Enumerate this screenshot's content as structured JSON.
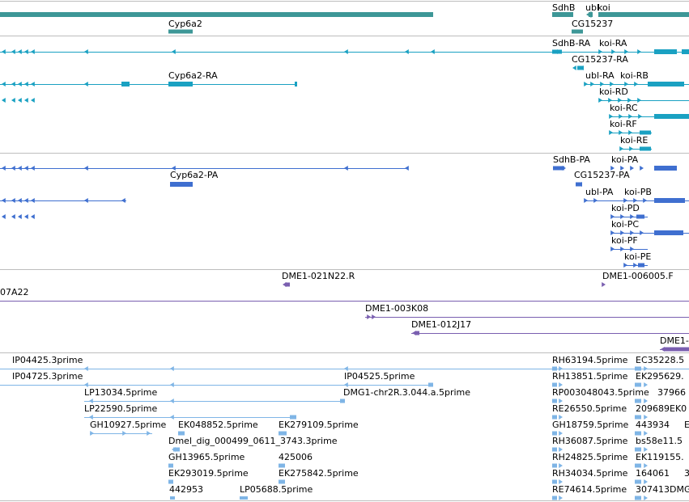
{
  "tracks": [
    {
      "name": "gene",
      "color": "#3d9797",
      "labels": [
        "Cyp6a2",
        "SdhB",
        "ubl",
        "koi",
        "CG15237"
      ]
    },
    {
      "name": "mrna",
      "color": "#1aa1c2",
      "labels": [
        "Cyp6a2-RA",
        "SdhB-RA",
        "koi-RA",
        "CG15237-RA",
        "ubl-RA",
        "koi-RB",
        "koi-RD",
        "koi-RC",
        "koi-RF",
        "koi-RE"
      ]
    },
    {
      "name": "cds",
      "color": "#3f6fd0",
      "labels": [
        "Cyp6a2-PA",
        "SdhB-PA",
        "koi-PA",
        "CG15237-PA",
        "ubl-PA",
        "koi-PB",
        "koi-PD",
        "koi-PC",
        "koi-PF",
        "koi-PE"
      ]
    },
    {
      "name": "bac",
      "color": "#7a5fb0",
      "labels": [
        "DME1-021N22.R",
        "DME1-006005.F",
        "07A22",
        "DME1-003K08",
        "DME1-012J17",
        "DME1-"
      ]
    },
    {
      "name": "est",
      "color": "#7fb5e6",
      "labels": [
        "IP04425.3prime",
        "IP04725.3prime",
        "IP04525.5prime",
        "LP13034.5prime",
        "DMG1-chr2R.3.044.a.5prime",
        "LP22590.5prime",
        "GH10927.5prime",
        "EK048852.5prime",
        "EK279109.5prime",
        "Dmel_dig_000499_0611_3743.3prime",
        "GH13965.5prime",
        "425006",
        "EK293019.5prime",
        "EK275842.5prime",
        "442953",
        "LP05688.5prime",
        "RH63194.5prime",
        "EC35228.5",
        "RH13851.5prime",
        "EK295629.",
        "RP003048043.5prime",
        "37966",
        "RE26550.5prime",
        "209689",
        "EK0",
        "GH18759.5prime",
        "443934",
        "E",
        "RH36087.5prime",
        "bs58e11.5",
        "RH24825.5prime",
        "EK119155.",
        "RH34034.5prime",
        "164061",
        "3",
        "RE74614.5prime",
        "307413",
        "DMG"
      ]
    }
  ]
}
